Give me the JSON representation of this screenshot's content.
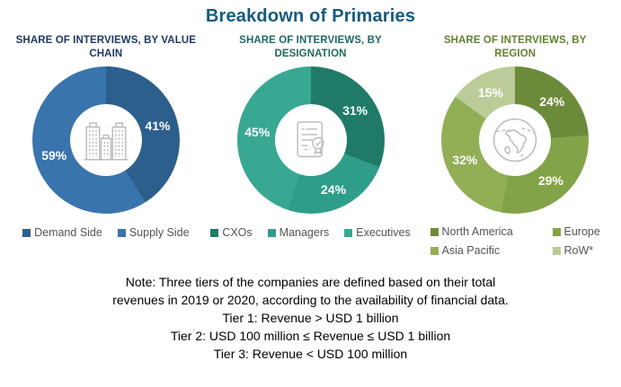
{
  "title": "Breakdown of Primaries",
  "title_color": "#155A7E",
  "chart_data": [
    {
      "type": "pie",
      "subtype": "donut",
      "title": "SHARE OF INTERVIEWS, BY VALUE CHAIN",
      "title_color": "#1F3864",
      "labels": [
        "Demand Side",
        "Supply Side"
      ],
      "values": [
        41,
        59
      ],
      "unit": "%",
      "colors": [
        "#2C5F8C",
        "#3A74AD"
      ],
      "center_icon": "buildings-icon",
      "start_angle_deg": 0,
      "direction": "clockwise",
      "legend_position": "bottom"
    },
    {
      "type": "pie",
      "subtype": "donut",
      "title": "SHARE OF INTERVIEWS, BY DESIGNATION",
      "title_color": "#1E6B5E",
      "labels": [
        "CXOs",
        "Managers",
        "Executives"
      ],
      "values": [
        31,
        24,
        45
      ],
      "unit": "%",
      "colors": [
        "#1F7B68",
        "#2E9E8A",
        "#38A893"
      ],
      "center_icon": "certificate-icon",
      "start_angle_deg": 0,
      "direction": "clockwise",
      "legend_position": "bottom"
    },
    {
      "type": "pie",
      "subtype": "donut",
      "title": "SHARE OF INTERVIEWS, BY REGION",
      "title_color": "#66802F",
      "labels": [
        "North America",
        "Europe",
        "Asia Pacific",
        "RoW*"
      ],
      "values": [
        24,
        29,
        32,
        15
      ],
      "unit": "%",
      "colors": [
        "#6C8B3A",
        "#83A348",
        "#92AF56",
        "#BACC97"
      ],
      "center_icon": "globe-icon",
      "start_angle_deg": 0,
      "direction": "clockwise",
      "legend_position": "bottom"
    }
  ],
  "note_lines": [
    "Note: Three tiers of the companies are defined based on their total",
    "revenues in 2019 or 2020, according to the availability of financial data.",
    "Tier 1: Revenue > USD 1 billion",
    "Tier 2: USD 100 million ≤ Revenue ≤ USD 1 billion",
    "Tier 3: Revenue < USD 100 million"
  ]
}
